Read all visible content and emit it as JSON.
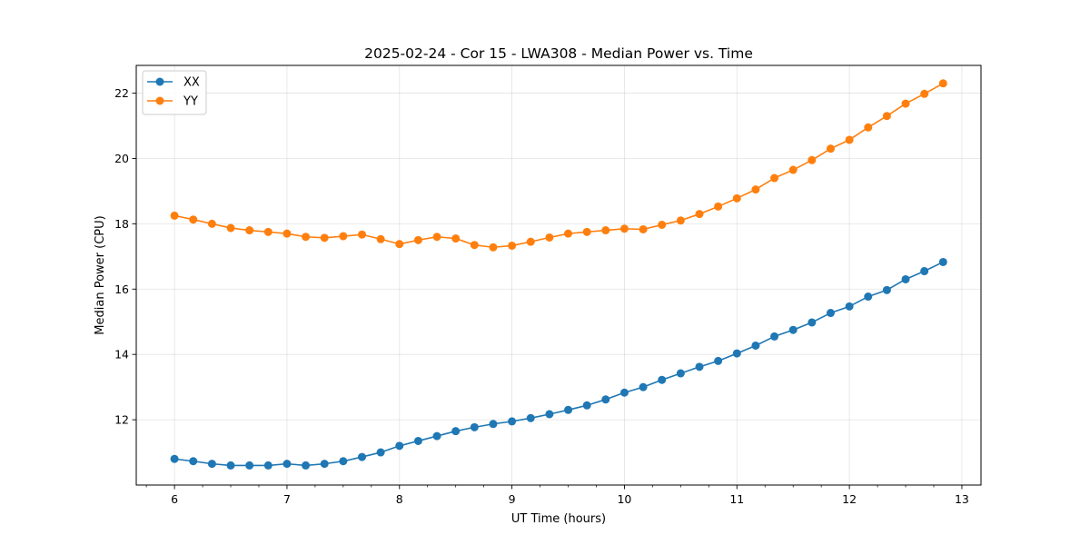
{
  "chart_data": {
    "type": "line",
    "title": "2025-02-24 - Cor 15 - LWA308 - Median Power vs. Time",
    "xlabel": "UT Time (hours)",
    "ylabel": "Median Power (CPU)",
    "xlim": [
      5.66,
      13.17
    ],
    "ylim": [
      10.0,
      22.85
    ],
    "xticks": [
      6,
      7,
      8,
      9,
      10,
      11,
      12,
      13
    ],
    "xticks_minor": [
      5.75,
      6.25,
      6.5,
      6.75,
      7.25,
      7.5,
      7.75,
      8.25,
      8.5,
      8.75,
      9.25,
      9.5,
      9.75,
      10.25,
      10.5,
      10.75,
      11.25,
      11.5,
      11.75,
      12.25,
      12.5,
      12.75,
      13.25
    ],
    "yticks": [
      12,
      14,
      16,
      18,
      20,
      22
    ],
    "grid": true,
    "legend_position": "upper-left",
    "x": [
      6.0,
      6.1667,
      6.3333,
      6.5,
      6.6667,
      6.8333,
      7.0,
      7.1667,
      7.3333,
      7.5,
      7.6667,
      7.8333,
      8.0,
      8.1667,
      8.3333,
      8.5,
      8.6667,
      8.8333,
      9.0,
      9.1667,
      9.3333,
      9.5,
      9.6667,
      9.8333,
      10.0,
      10.1667,
      10.3333,
      10.5,
      10.6667,
      10.8333,
      11.0,
      11.1667,
      11.3333,
      11.5,
      11.6667,
      11.8333,
      12.0,
      12.1667,
      12.3333,
      12.5,
      12.6667,
      12.8333
    ],
    "series": [
      {
        "name": "XX",
        "color": "#1f77b4",
        "values": [
          10.8,
          10.73,
          10.65,
          10.6,
          10.6,
          10.6,
          10.65,
          10.6,
          10.65,
          10.73,
          10.86,
          11.0,
          11.2,
          11.35,
          11.5,
          11.65,
          11.77,
          11.87,
          11.95,
          12.05,
          12.17,
          12.3,
          12.44,
          12.62,
          12.83,
          13.0,
          13.22,
          13.42,
          13.62,
          13.8,
          14.03,
          14.27,
          14.55,
          14.75,
          14.98,
          15.27,
          15.47,
          15.77,
          15.97,
          16.3,
          16.55,
          16.83
        ]
      },
      {
        "name": "YY",
        "color": "#ff7f0e",
        "values": [
          18.25,
          18.13,
          18.0,
          17.87,
          17.8,
          17.75,
          17.7,
          17.6,
          17.57,
          17.62,
          17.67,
          17.53,
          17.38,
          17.5,
          17.6,
          17.55,
          17.35,
          17.28,
          17.33,
          17.45,
          17.58,
          17.7,
          17.75,
          17.8,
          17.85,
          17.83,
          17.97,
          18.1,
          18.3,
          18.53,
          18.78,
          19.05,
          19.4,
          19.65,
          19.95,
          20.3,
          20.57,
          20.95,
          21.3,
          21.68,
          21.98,
          22.3
        ]
      }
    ]
  }
}
